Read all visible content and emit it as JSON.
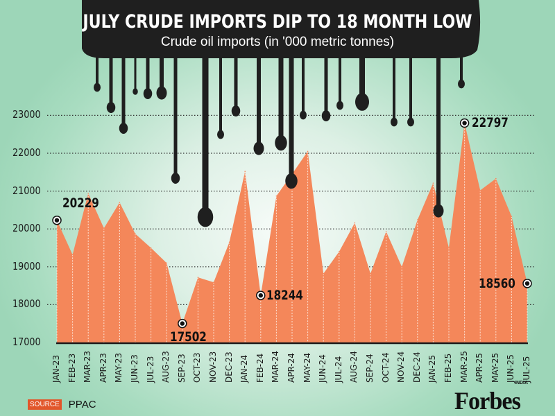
{
  "chart_data": {
    "type": "area",
    "title": "JULY CRUDE IMPORTS DIP TO 18 MONTH LOW",
    "subtitle": "Crude oil imports (in '000 metric tonnes)",
    "xlabel": "",
    "ylabel": "",
    "ylim": [
      17000,
      23500
    ],
    "yticks": [
      17000,
      18000,
      19000,
      20000,
      21000,
      22000,
      23000
    ],
    "ytick_labels": [
      "17000",
      "18000",
      "19000",
      "20000",
      "21000",
      "22000",
      "23000"
    ],
    "grid": true,
    "categories": [
      "JAN-23",
      "FEB-23",
      "MAR-23",
      "APR-23",
      "MAY-23",
      "JUN-23",
      "JUL-23",
      "AUG-23",
      "SEP-23",
      "OCT-23",
      "NOV-23",
      "DEC-23",
      "JAN-24",
      "FEB-24",
      "MAR-24",
      "APR-24",
      "MAY-24",
      "JUN-24",
      "JUL-24",
      "AUG-24",
      "SEP-24",
      "OCT-24",
      "NOV-24",
      "DEC-24",
      "JAN-25",
      "FEB-25",
      "MAR-25",
      "APR-25",
      "MAY-25",
      "JUN-25",
      "JUL-25"
    ],
    "series": [
      {
        "name": "Crude oil imports",
        "color": "#f4875a",
        "values": [
          20229,
          19320,
          20940,
          20020,
          20700,
          19870,
          19500,
          19100,
          17502,
          18720,
          18590,
          19650,
          21520,
          18244,
          20870,
          21450,
          22050,
          18820,
          19400,
          20160,
          18820,
          19930,
          19000,
          20240,
          21210,
          19500,
          22797,
          21020,
          21330,
          20330,
          18560
        ]
      }
    ],
    "annotations": [
      {
        "category": "JAN-23",
        "label": "20229"
      },
      {
        "category": "SEP-23",
        "label": "17502"
      },
      {
        "category": "FEB-24",
        "label": "18244"
      },
      {
        "category": "MAR-25",
        "label": "22797"
      },
      {
        "category": "JUL-25",
        "label": "18560"
      }
    ]
  },
  "footer": {
    "source_badge": "SOURCE",
    "source_value": "PPAC",
    "logo": "Forbes",
    "logo_edition": "INDIA"
  },
  "colors": {
    "area": "#f4875a",
    "oil": "#1f1f1f",
    "badge": "#e2562a"
  }
}
